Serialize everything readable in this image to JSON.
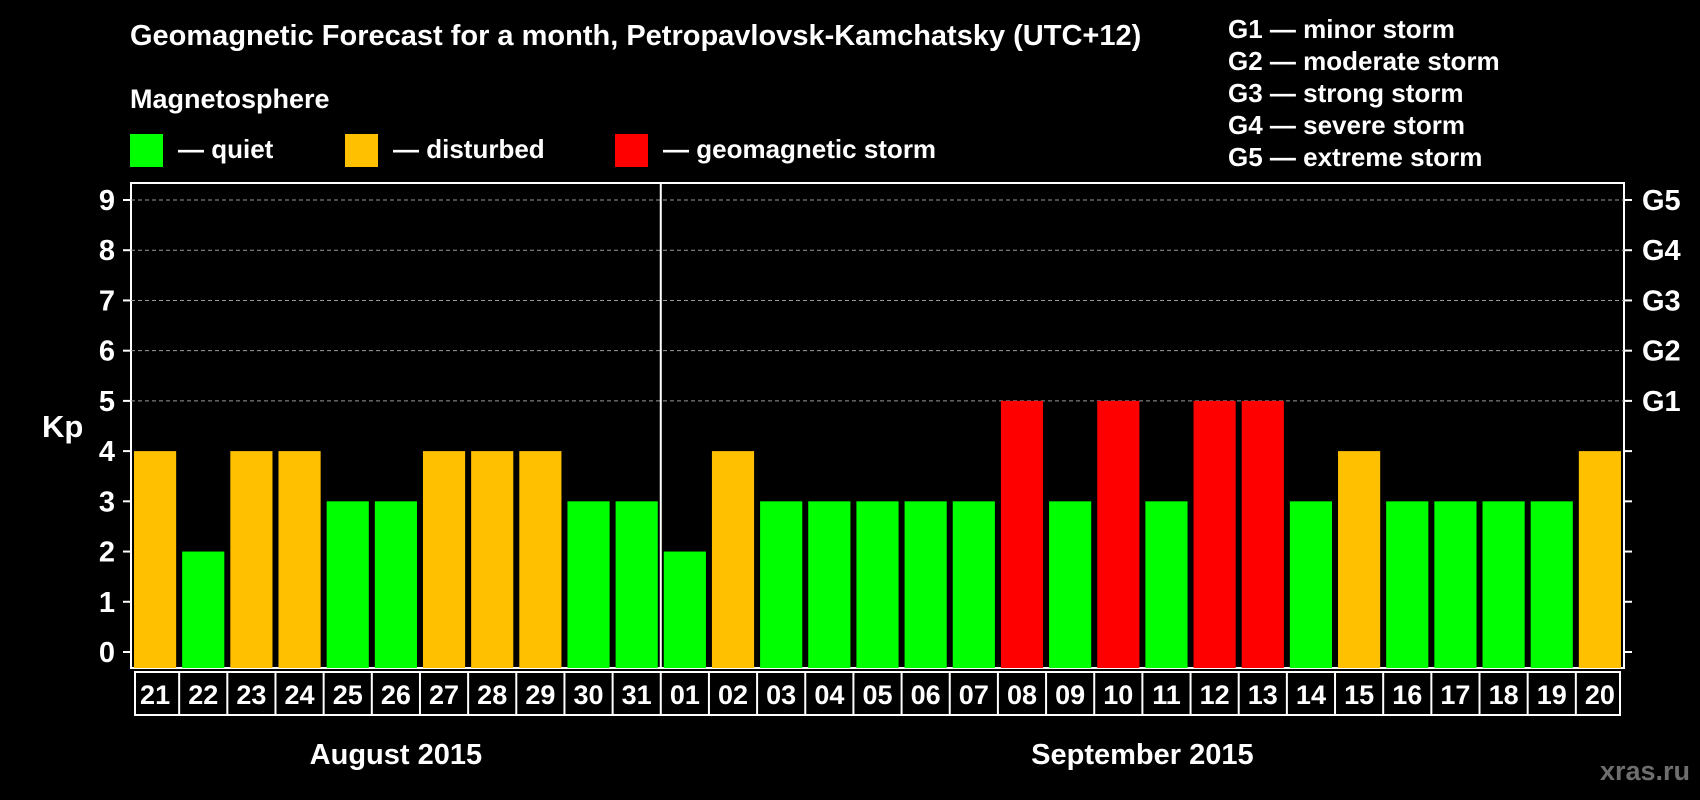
{
  "chart_data": {
    "type": "bar",
    "title": "Geomagnetic Forecast for a month, Petropavlovsk-Kamchatsky (UTC+12)",
    "ylabel": "Kp",
    "ylim": [
      0,
      9
    ],
    "yticks": [
      "0",
      "1",
      "2",
      "3",
      "4",
      "5",
      "6",
      "7",
      "8",
      "9"
    ],
    "right_axis_labels": [
      {
        "kp": 5,
        "label": "G1"
      },
      {
        "kp": 6,
        "label": "G2"
      },
      {
        "kp": 7,
        "label": "G3"
      },
      {
        "kp": 8,
        "label": "G4"
      },
      {
        "kp": 9,
        "label": "G5"
      }
    ],
    "categories": [
      "21",
      "22",
      "23",
      "24",
      "25",
      "26",
      "27",
      "28",
      "29",
      "30",
      "31",
      "01",
      "02",
      "03",
      "04",
      "05",
      "06",
      "07",
      "08",
      "09",
      "10",
      "11",
      "12",
      "13",
      "14",
      "15",
      "16",
      "17",
      "18",
      "19",
      "20"
    ],
    "values": [
      4,
      2,
      4,
      4,
      3,
      3,
      4,
      4,
      4,
      3,
      3,
      2,
      4,
      3,
      3,
      3,
      3,
      3,
      5,
      3,
      5,
      3,
      5,
      5,
      3,
      4,
      3,
      3,
      3,
      3,
      4
    ],
    "status": [
      "disturbed",
      "quiet",
      "disturbed",
      "disturbed",
      "quiet",
      "quiet",
      "disturbed",
      "disturbed",
      "disturbed",
      "quiet",
      "quiet",
      "quiet",
      "disturbed",
      "quiet",
      "quiet",
      "quiet",
      "quiet",
      "quiet",
      "storm",
      "quiet",
      "storm",
      "quiet",
      "storm",
      "storm",
      "quiet",
      "disturbed",
      "quiet",
      "quiet",
      "quiet",
      "quiet",
      "disturbed"
    ],
    "months": [
      {
        "label": "August 2015",
        "start_index": 0,
        "end_index": 10
      },
      {
        "label": "September 2015",
        "start_index": 11,
        "end_index": 30
      }
    ],
    "grid": true
  },
  "colors": {
    "quiet": "#00ff00",
    "disturbed": "#ffc000",
    "storm": "#ff0000",
    "background": "#000000",
    "grid": "#9a9a9a"
  },
  "legend": {
    "heading": "Magnetosphere",
    "items": [
      {
        "key": "quiet",
        "label": "— quiet"
      },
      {
        "key": "disturbed",
        "label": "— disturbed"
      },
      {
        "key": "storm",
        "label": "— geomagnetic storm"
      }
    ]
  },
  "storm_levels": [
    "G1 — minor storm",
    "G2 — moderate storm",
    "G3 — strong storm",
    "G4 — severe storm",
    "G5 — extreme storm"
  ],
  "watermark": "xras.ru"
}
